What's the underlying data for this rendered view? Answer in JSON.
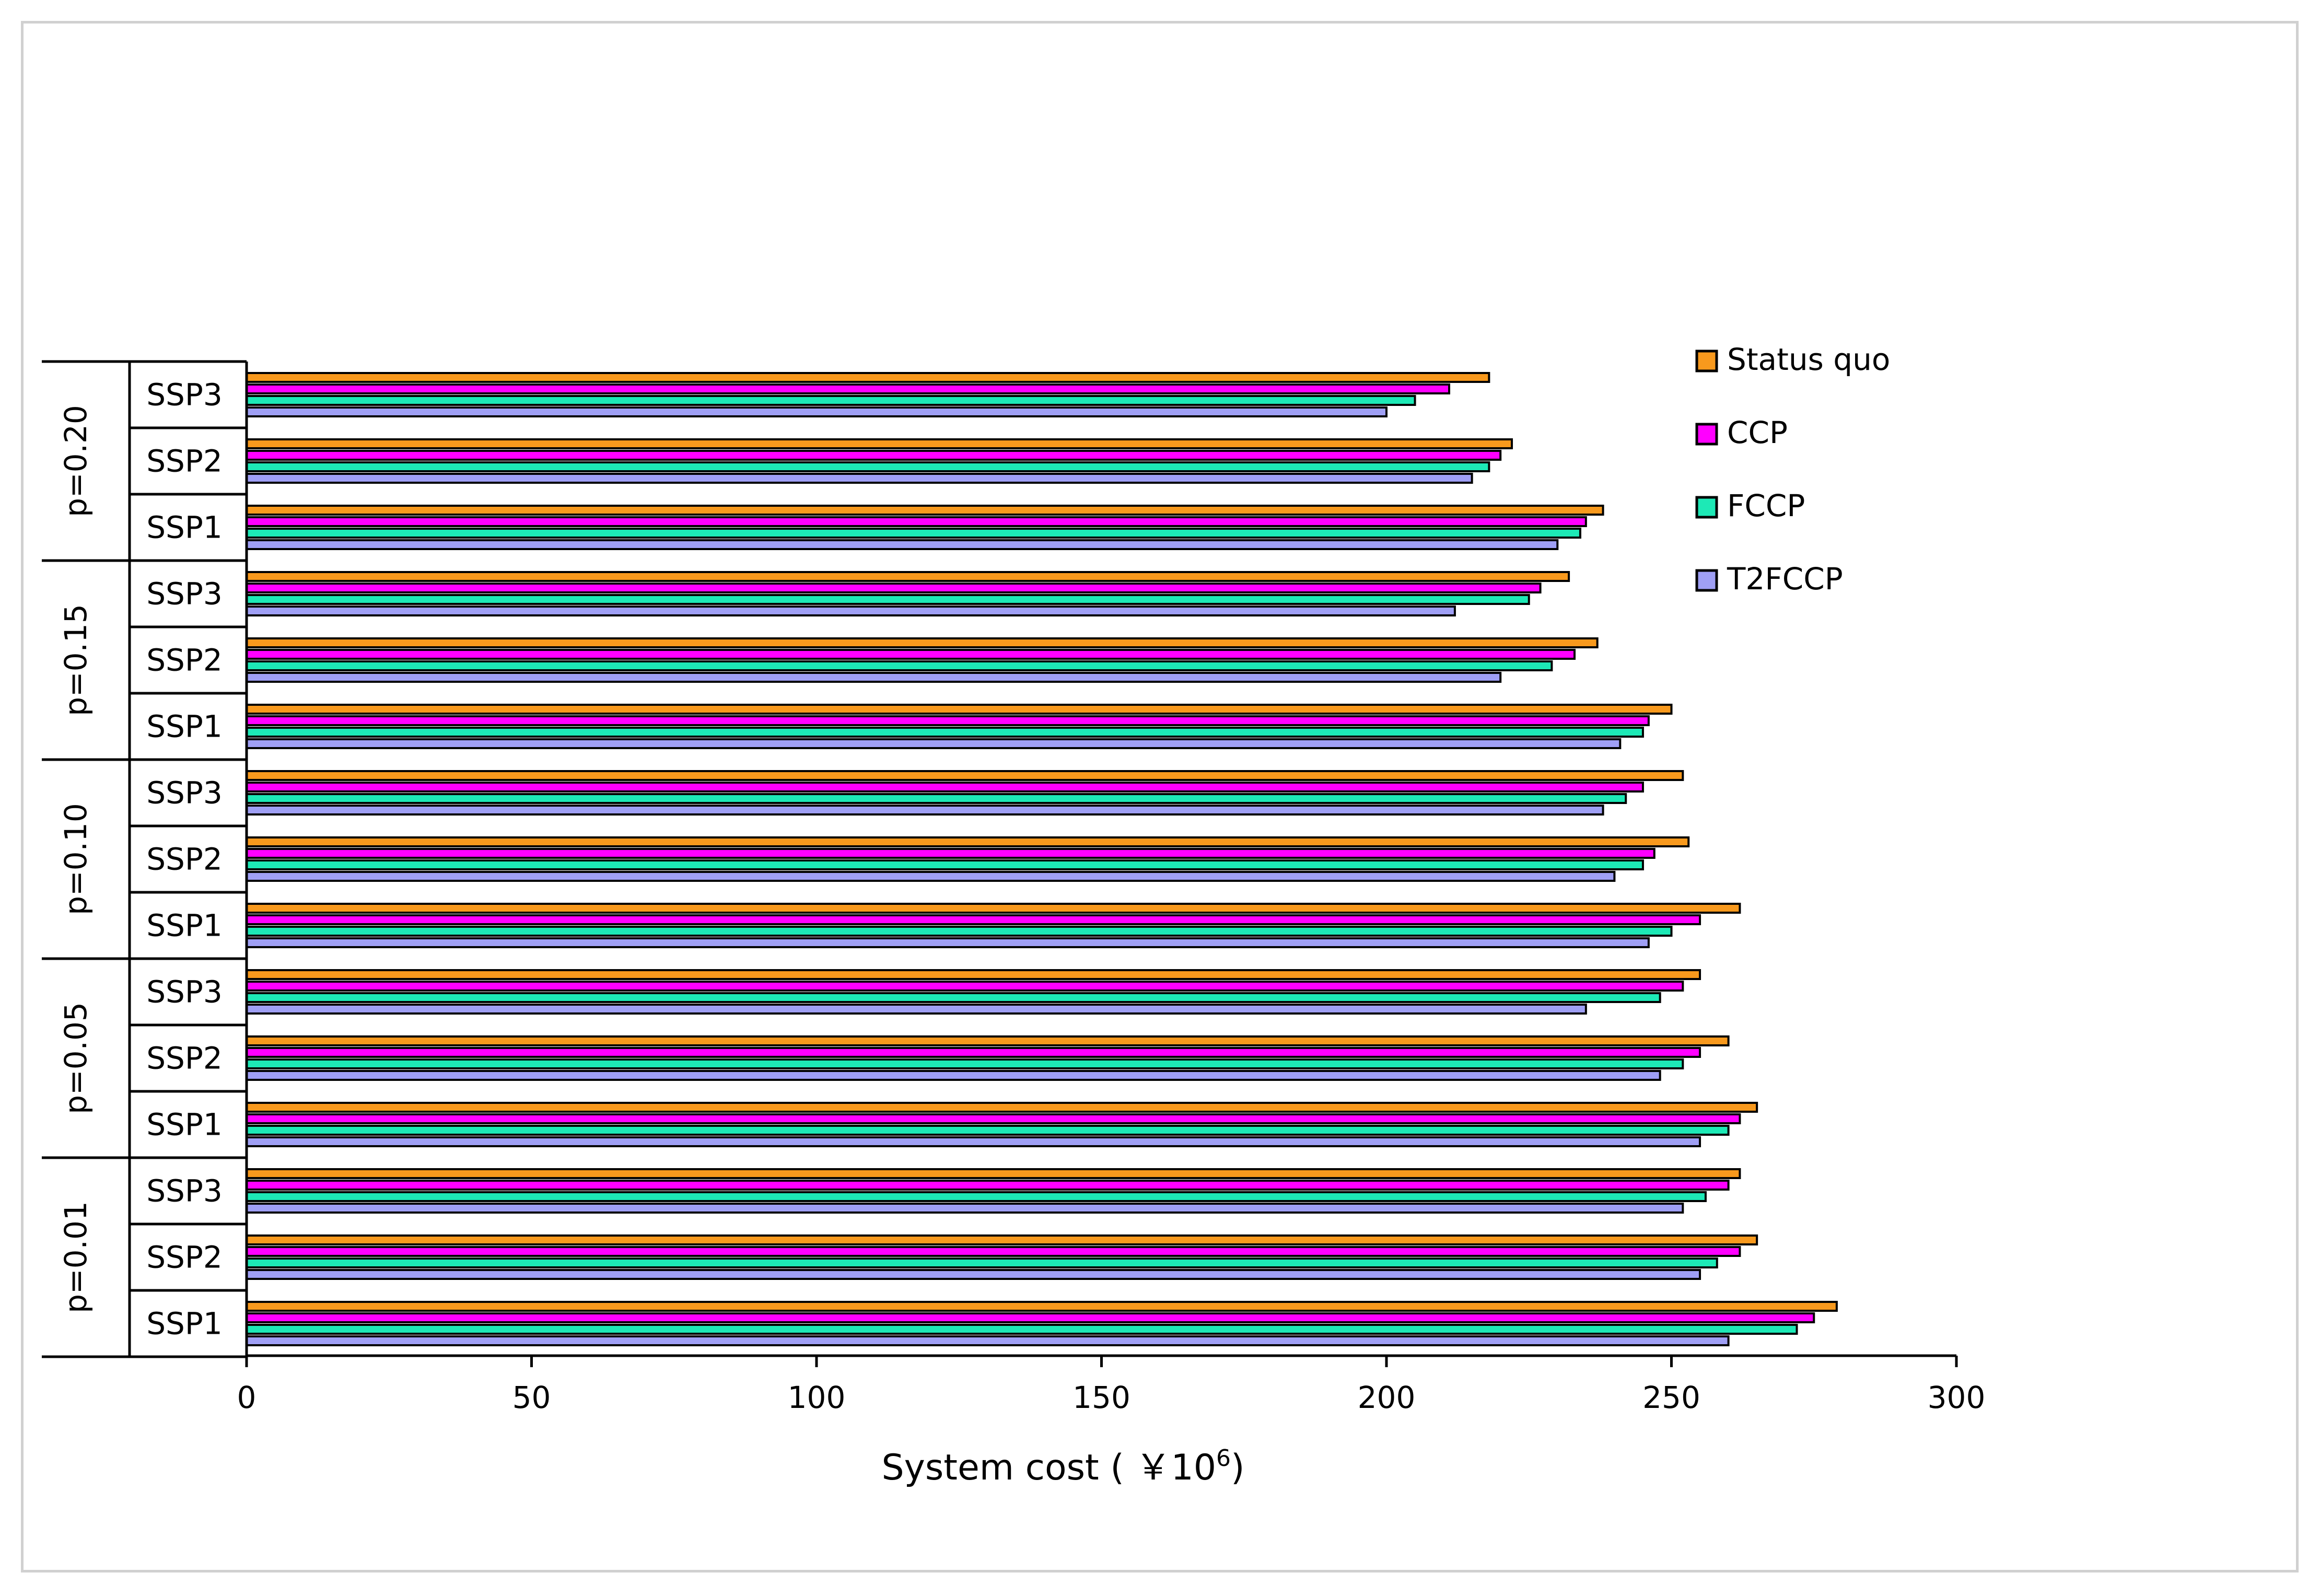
{
  "chart_data": {
    "type": "bar",
    "orientation": "horizontal",
    "xlabel": {
      "text": "System cost ( ￥10",
      "sup": "6",
      "close": ")"
    },
    "xlim": [
      0,
      300
    ],
    "xticks": [
      0,
      50,
      100,
      150,
      200,
      250,
      300
    ],
    "grid": false,
    "legend_position": "top-right",
    "series": [
      {
        "name": "Status quo",
        "color": "#f8991d"
      },
      {
        "name": "CCP",
        "color": "#ff00ff"
      },
      {
        "name": "FCCP",
        "color": "#1de9b6"
      },
      {
        "name": "T2FCCP",
        "color": "#9f9ff5"
      }
    ],
    "groups": [
      {
        "label": "p=0.20",
        "categories": [
          {
            "label": "SSP3",
            "values": [
              218,
              211,
              205,
              200
            ]
          },
          {
            "label": "SSP2",
            "values": [
              222,
              220,
              218,
              215
            ]
          },
          {
            "label": "SSP1",
            "values": [
              238,
              235,
              234,
              230
            ]
          }
        ]
      },
      {
        "label": "p=0.15",
        "categories": [
          {
            "label": "SSP3",
            "values": [
              232,
              227,
              225,
              212
            ]
          },
          {
            "label": "SSP2",
            "values": [
              237,
              233,
              229,
              220
            ]
          },
          {
            "label": "SSP1",
            "values": [
              250,
              246,
              245,
              241
            ]
          }
        ]
      },
      {
        "label": "p=0.10",
        "categories": [
          {
            "label": "SSP3",
            "values": [
              252,
              245,
              242,
              238
            ]
          },
          {
            "label": "SSP2",
            "values": [
              253,
              247,
              245,
              240
            ]
          },
          {
            "label": "SSP1",
            "values": [
              262,
              255,
              250,
              246
            ]
          }
        ]
      },
      {
        "label": "p=0.05",
        "categories": [
          {
            "label": "SSP3",
            "values": [
              255,
              252,
              248,
              235
            ]
          },
          {
            "label": "SSP2",
            "values": [
              260,
              255,
              252,
              248
            ]
          },
          {
            "label": "SSP1",
            "values": [
              265,
              262,
              260,
              255
            ]
          }
        ]
      },
      {
        "label": "p=0.01",
        "categories": [
          {
            "label": "SSP3",
            "values": [
              262,
              260,
              256,
              252
            ]
          },
          {
            "label": "SSP2",
            "values": [
              265,
              262,
              258,
              255
            ]
          },
          {
            "label": "SSP1",
            "values": [
              279,
              275,
              272,
              260
            ]
          }
        ]
      }
    ]
  }
}
